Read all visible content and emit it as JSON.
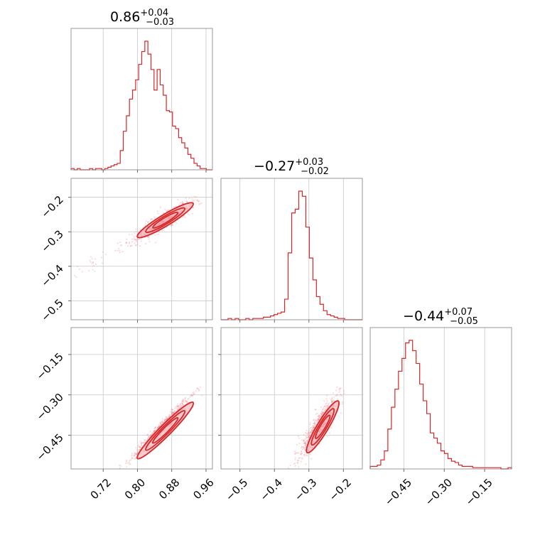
{
  "figure": {
    "bg": "#ffffff",
    "accent": "#d62728",
    "fill": "#f4a3aa"
  },
  "titles": [
    {
      "main": "0.86",
      "sup": "+0.04",
      "sub": "−0.03"
    },
    {
      "main": "−0.27",
      "sup": "+0.03",
      "sub": "−0.02"
    },
    {
      "main": "−0.44",
      "sup": "+0.07",
      "sub": "−0.05"
    }
  ],
  "chart_data": {
    "type": "corner",
    "params": [
      {
        "range": [
          0.645,
          0.975
        ],
        "median": 0.86,
        "plus": 0.04,
        "minus": 0.03,
        "ticks": [
          0.72,
          0.8,
          0.88,
          0.96
        ],
        "tick_labels": [
          "0.72",
          "0.80",
          "0.88",
          "0.96"
        ]
      },
      {
        "range": [
          -0.555,
          -0.145
        ],
        "median": -0.27,
        "plus": 0.03,
        "minus": 0.02,
        "ticks": [
          -0.5,
          -0.4,
          -0.3,
          -0.2
        ],
        "tick_labels": [
          "−0.5",
          "−0.4",
          "−0.3",
          "−0.2"
        ]
      },
      {
        "range": [
          -0.575,
          -0.05
        ],
        "median": -0.44,
        "plus": 0.07,
        "minus": 0.05,
        "ticks": [
          -0.45,
          -0.3,
          -0.15
        ],
        "tick_labels": [
          "−0.45",
          "−0.30",
          "−0.15"
        ],
        "ytick_labels": [
          "−0.15",
          "−0.30",
          "−0.45"
        ]
      }
    ],
    "histograms": [
      [
        0.01,
        0.0,
        0.01,
        0.0,
        0.0,
        0.0,
        0.01,
        0.0,
        0.01,
        0.01,
        0.0,
        0.01,
        0.02,
        0.03,
        0.04,
        0.05,
        0.15,
        0.3,
        0.42,
        0.55,
        0.62,
        0.7,
        0.82,
        0.92,
        1.0,
        0.9,
        0.78,
        0.62,
        0.78,
        0.66,
        0.58,
        0.46,
        0.45,
        0.34,
        0.32,
        0.25,
        0.21,
        0.17,
        0.12,
        0.09,
        0.05,
        0.03,
        0.01,
        0.01,
        0.0,
        0.0
      ],
      [
        0.0,
        0.0,
        0.01,
        0.0,
        0.01,
        0.0,
        0.0,
        0.01,
        0.0,
        0.01,
        0.01,
        0.01,
        0.02,
        0.02,
        0.03,
        0.04,
        0.05,
        0.06,
        0.16,
        0.52,
        0.83,
        0.86,
        1.0,
        0.96,
        0.72,
        0.48,
        0.31,
        0.18,
        0.12,
        0.07,
        0.04,
        0.03,
        0.02,
        0.01,
        0.01,
        0.0,
        0.0,
        0.0,
        0.0,
        0.0
      ],
      [
        0.02,
        0.02,
        0.03,
        0.07,
        0.14,
        0.31,
        0.48,
        0.62,
        0.76,
        0.86,
        0.98,
        1.0,
        0.92,
        0.82,
        0.66,
        0.53,
        0.43,
        0.28,
        0.24,
        0.2,
        0.14,
        0.12,
        0.08,
        0.06,
        0.05,
        0.03,
        0.02,
        0.02,
        0.02,
        0.01,
        0.01,
        0.01,
        0.01,
        0.01,
        0.01,
        0.01,
        0.01,
        0.0,
        0.0,
        0.01
      ]
    ],
    "grid": true,
    "legend": "none"
  }
}
